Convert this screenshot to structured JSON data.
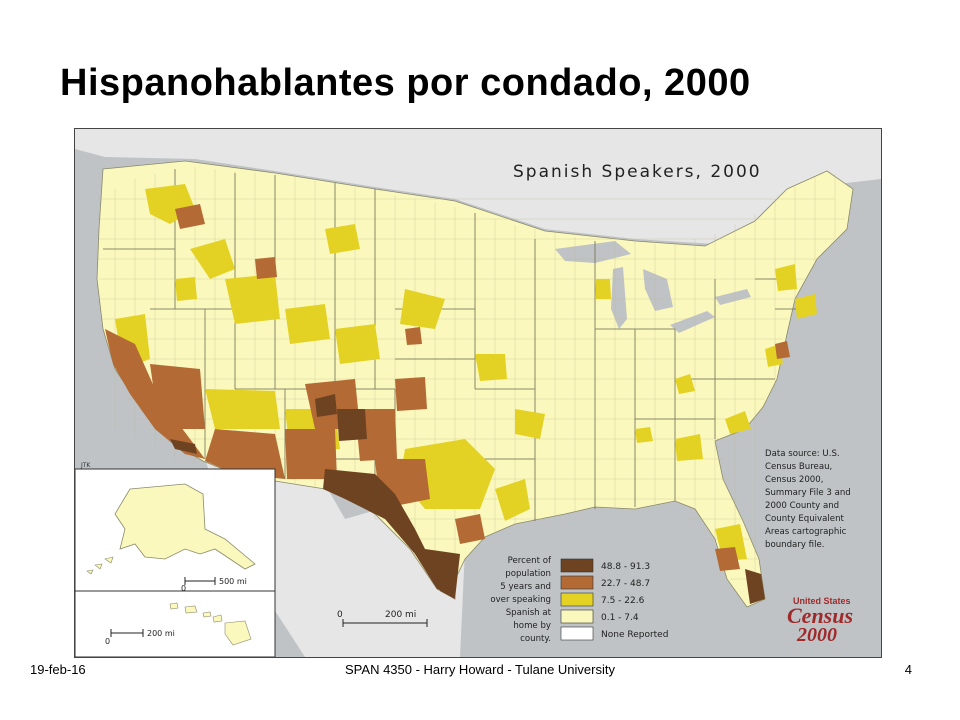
{
  "slide": {
    "title": "Hispanohablantes por condado, 2000",
    "footer_date": "19-feb-16",
    "footer_center": "SPAN 4350 - Harry Howard - Tulane University",
    "page_number": "4"
  },
  "map": {
    "title": "Spanish Speakers, 2000",
    "credit": "JTK",
    "data_source": [
      "Data source: U.S.",
      "Census Bureau,",
      "Census 2000,",
      "Summary File 3 and",
      "2000 County and",
      "County Equivalent",
      "Areas cartographic",
      "boundary file."
    ],
    "legend_description": [
      "Percent of",
      "population",
      "5 years and",
      "over speaking",
      "Spanish at",
      "home by",
      "county."
    ],
    "legend": [
      {
        "label": "48.8 - 91.3",
        "color": "#6e4322"
      },
      {
        "label": "22.7 - 48.7",
        "color": "#b36a35"
      },
      {
        "label": "7.5 - 22.6",
        "color": "#e3d224"
      },
      {
        "label": "0.1 - 7.4",
        "color": "#fbf8bd"
      },
      {
        "label": "None Reported",
        "color": "#ffffff"
      }
    ],
    "scale_main": {
      "zero": "0",
      "value": "200 mi"
    },
    "scale_alaska": {
      "zero": "0",
      "value": "500 mi"
    },
    "scale_hawaii": {
      "zero": "0",
      "value": "200 mi"
    },
    "logo": {
      "line1": "United States",
      "line2": "Census",
      "line3": "2000"
    },
    "colors": {
      "water": "#bfc3c6",
      "land_outside": "#e8e8e8",
      "ocean_dark": "#9ea3a7"
    }
  }
}
